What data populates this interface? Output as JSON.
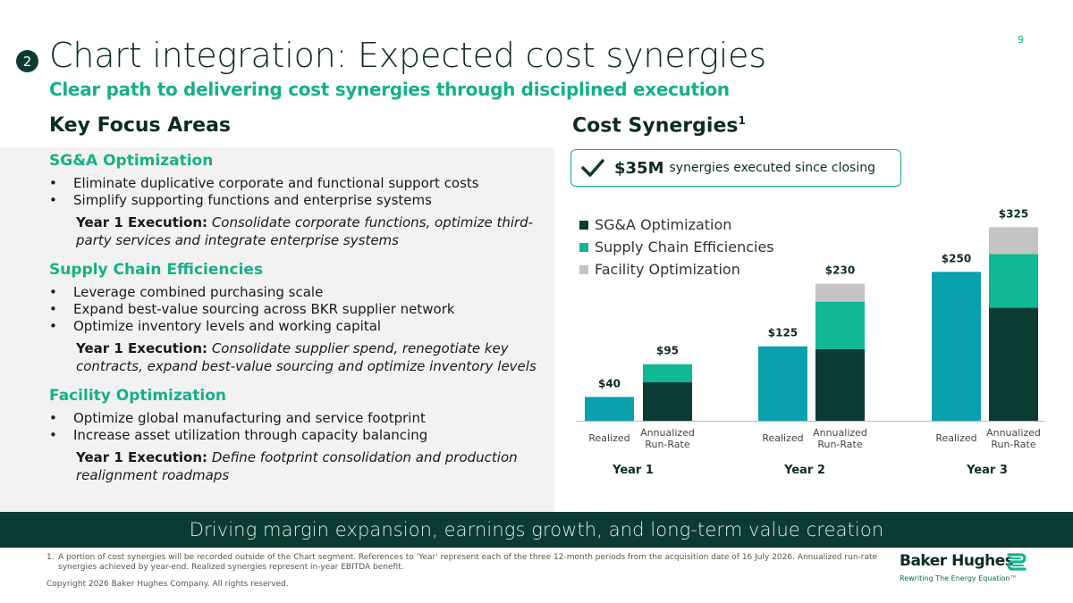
{
  "page_number": "9",
  "section_number": "2",
  "title": "Chart integration: Expected cost synergies",
  "subtitle": "Clear path to delivering cost synergies through disciplined execution",
  "left_header": "Key Focus Areas",
  "right_header": "Cost Synergies",
  "right_header_sup": "1",
  "focus_areas": [
    {
      "title": "SG&A Optimization",
      "bullets": [
        "Eliminate duplicative corporate and functional support costs",
        "Simplify supporting functions and enterprise systems"
      ],
      "execution_label": "Year 1 Execution:",
      "execution_text": "Consolidate corporate functions, optimize third-party services and integrate enterprise systems"
    },
    {
      "title": "Supply Chain Efficiencies",
      "bullets": [
        "Leverage combined purchasing scale",
        "Expand best-value sourcing across BKR supplier network",
        "Optimize inventory levels and working capital"
      ],
      "execution_label": "Year 1 Execution:",
      "execution_text": "Consolidate supplier spend, renegotiate key contracts, expand best-value sourcing and optimize inventory levels"
    },
    {
      "title": "Facility Optimization",
      "bullets": [
        "Optimize global manufacturing and service footprint",
        "Increase asset utilization through capacity balancing"
      ],
      "execution_label": "Year 1 Execution:",
      "execution_text": "Define footprint consolidation and production realignment roadmaps"
    }
  ],
  "callout": {
    "amount": "$35M",
    "text": "synergies executed since closing",
    "icon": "check-icon"
  },
  "chart_data": {
    "type": "bar",
    "stacked": true,
    "legend_position": "top-left",
    "colors": {
      "SG&A Optimization": "#0b3b33",
      "Supply Chain Efficiencies": "#11b894",
      "Facility Optimization": "#c4c4c4",
      "Realized": "#0aa0ad"
    },
    "legend": [
      "SG&A Optimization",
      "Supply Chain Efficiencies",
      "Facility Optimization"
    ],
    "groups": [
      "Year 1",
      "Year 2",
      "Year 3"
    ],
    "bars": [
      {
        "group": "Year 1",
        "label": "Realized",
        "total_label": "$40",
        "segments": [
          {
            "series": "Realized",
            "value": 40
          }
        ]
      },
      {
        "group": "Year 1",
        "label": "Annualized Run-Rate",
        "total_label": "$95",
        "segments": [
          {
            "series": "SG&A Optimization",
            "value": 65
          },
          {
            "series": "Supply Chain Efficiencies",
            "value": 30
          }
        ]
      },
      {
        "group": "Year 2",
        "label": "Realized",
        "total_label": "$125",
        "segments": [
          {
            "series": "Realized",
            "value": 125
          }
        ]
      },
      {
        "group": "Year 2",
        "label": "Annualized Run-Rate",
        "total_label": "$230",
        "segments": [
          {
            "series": "SG&A Optimization",
            "value": 120
          },
          {
            "series": "Supply Chain Efficiencies",
            "value": 80
          },
          {
            "series": "Facility Optimization",
            "value": 30
          }
        ]
      },
      {
        "group": "Year 3",
        "label": "Realized",
        "total_label": "$250",
        "segments": [
          {
            "series": "Realized",
            "value": 250
          }
        ]
      },
      {
        "group": "Year 3",
        "label": "Annualized Run-Rate",
        "total_label": "$325",
        "segments": [
          {
            "series": "SG&A Optimization",
            "value": 190
          },
          {
            "series": "Supply Chain Efficiencies",
            "value": 90
          },
          {
            "series": "Facility Optimization",
            "value": 45
          }
        ]
      }
    ],
    "ylim": [
      0,
      330
    ]
  },
  "banner": "Driving margin expansion, earnings growth, and long-term value creation",
  "footnote_number": "1.",
  "footnote": "A portion of cost synergies will be recorded outside of the Chart segment. References to 'Year' represent each of the three 12-month periods from the acquisition date of 16 July 2026. Annualized run-rate synergies achieved by year-end. Realized synergies represent in-year EBITDA benefit.",
  "copyright": "Copyright 2026 Baker Hughes Company. All rights reserved.",
  "logo": {
    "name": "Baker Hughes",
    "tagline": "Rewriting The Energy Equation™"
  }
}
